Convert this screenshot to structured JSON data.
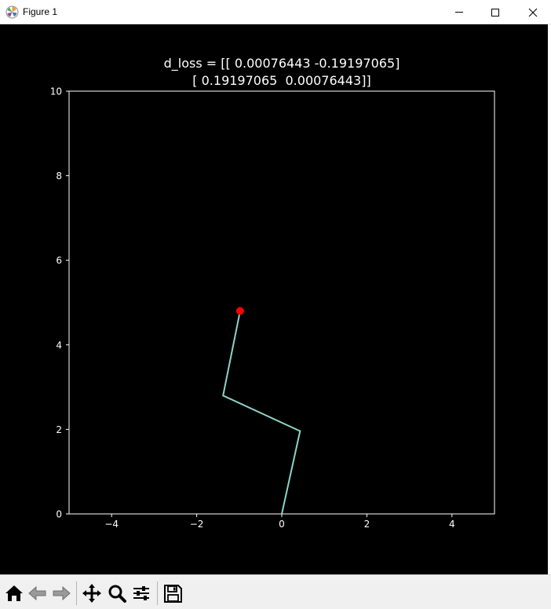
{
  "window": {
    "title": "Figure 1",
    "controls": [
      "minimize-icon",
      "maximize-icon",
      "close-icon"
    ]
  },
  "colors": {
    "figure_background": "#000000",
    "axes_edge": "#ffffff",
    "text": "#ffffff",
    "line": "#8dd3c7",
    "end_point": "#ff0000",
    "toolbar_background": "#f0f0f0"
  },
  "chart_data": {
    "type": "line",
    "title_lines": [
      "d_loss = [[ 0.00076443 -0.19197065]",
      "[ 0.19197065  0.00076443]]"
    ],
    "xlabel": "",
    "ylabel": "",
    "xlim": [
      -5,
      5
    ],
    "ylim": [
      0,
      10
    ],
    "xticks": [
      -4,
      -2,
      0,
      2,
      4
    ],
    "xtick_labels": [
      "−4",
      "−2",
      "0",
      "2",
      "4"
    ],
    "yticks": [
      0,
      2,
      4,
      6,
      8,
      10
    ],
    "ytick_labels": [
      "0",
      "2",
      "4",
      "6",
      "8",
      "10"
    ],
    "grid": false,
    "series": [
      {
        "x": [
          0,
          0.43,
          -1.38,
          -0.98
        ],
        "y": [
          0,
          1.96,
          2.8,
          4.8
        ]
      }
    ],
    "end_point": {
      "x": -0.98,
      "y": 4.8,
      "marker": "circle"
    }
  },
  "toolbar": {
    "buttons": [
      {
        "name": "home-button",
        "icon": "home-icon",
        "enabled": true
      },
      {
        "name": "back-button",
        "icon": "back-arrow-icon",
        "enabled": false
      },
      {
        "name": "forward-button",
        "icon": "forward-arrow-icon",
        "enabled": false
      },
      {
        "name": "pan-button",
        "icon": "pan-icon",
        "enabled": true
      },
      {
        "name": "zoom-button",
        "icon": "zoom-icon",
        "enabled": true
      },
      {
        "name": "configure-subplots-button",
        "icon": "sliders-icon",
        "enabled": true
      },
      {
        "name": "save-button",
        "icon": "save-icon",
        "enabled": true
      }
    ]
  }
}
